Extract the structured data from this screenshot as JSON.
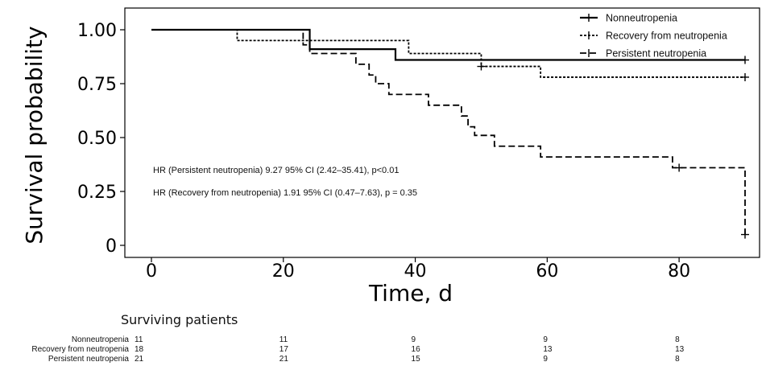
{
  "chart_data": {
    "type": "line",
    "subtype": "kaplan-meier step",
    "title": "",
    "xlabel": "Time, d",
    "ylabel": "Survival probability",
    "xlim": [
      0,
      90
    ],
    "ylim": [
      0,
      1
    ],
    "x_ticks": [
      0,
      20,
      40,
      60,
      80
    ],
    "x_tick_labels": [
      "0",
      "20",
      "40",
      "60",
      "80"
    ],
    "y_ticks": [
      0,
      0.25,
      0.5,
      0.75,
      1
    ],
    "y_tick_labels": [
      "0",
      "0.25",
      "0.50",
      "0.75",
      "1.00"
    ],
    "grid": false,
    "legend_position": "top-right",
    "series": [
      {
        "name": "Nonneutropenia",
        "line_style": "solid",
        "color": "#000000",
        "steps": [
          [
            0,
            1.0
          ],
          [
            24,
            0.91
          ],
          [
            37,
            0.86
          ],
          [
            90,
            0.86
          ]
        ],
        "censor_times": [
          90
        ]
      },
      {
        "name": "Recovery from neutropenia",
        "line_style": "dotted",
        "color": "#000000",
        "steps": [
          [
            0,
            1.0
          ],
          [
            13,
            0.95
          ],
          [
            39,
            0.89
          ],
          [
            50,
            0.83
          ],
          [
            59,
            0.78
          ],
          [
            90,
            0.78
          ]
        ],
        "censor_times": [
          50,
          90
        ]
      },
      {
        "name": "Persistent neutropenia",
        "line_style": "dashed",
        "color": "#000000",
        "steps": [
          [
            0,
            1.0
          ],
          [
            23,
            0.93
          ],
          [
            24,
            0.89
          ],
          [
            31,
            0.84
          ],
          [
            33,
            0.79
          ],
          [
            34,
            0.75
          ],
          [
            36,
            0.7
          ],
          [
            42,
            0.65
          ],
          [
            47,
            0.6
          ],
          [
            48,
            0.55
          ],
          [
            49,
            0.51
          ],
          [
            52,
            0.46
          ],
          [
            59,
            0.41
          ],
          [
            79,
            0.36
          ],
          [
            90,
            0.05
          ]
        ],
        "censor_times": [
          80,
          90
        ]
      }
    ],
    "annotations": [
      "HR (Persistent neutropenia) 9.27 95% CI (2.42–35.41), p<0.01",
      "HR (Recovery from neutropenia) 1.91 95% CI (0.47–7.63), p = 0.35"
    ],
    "risk_table": {
      "title": "Surviving patients",
      "times": [
        0,
        20,
        40,
        60,
        80
      ],
      "rows": [
        {
          "name": "Nonneutropenia",
          "values": [
            "11",
            "11",
            "9",
            "9",
            "8"
          ]
        },
        {
          "name": "Recovery from neutropenia",
          "values": [
            "18",
            "17",
            "16",
            "13",
            "13"
          ]
        },
        {
          "name": "Persistent neutropenia",
          "values": [
            "21",
            "21",
            "15",
            "9",
            "8"
          ]
        }
      ]
    }
  }
}
